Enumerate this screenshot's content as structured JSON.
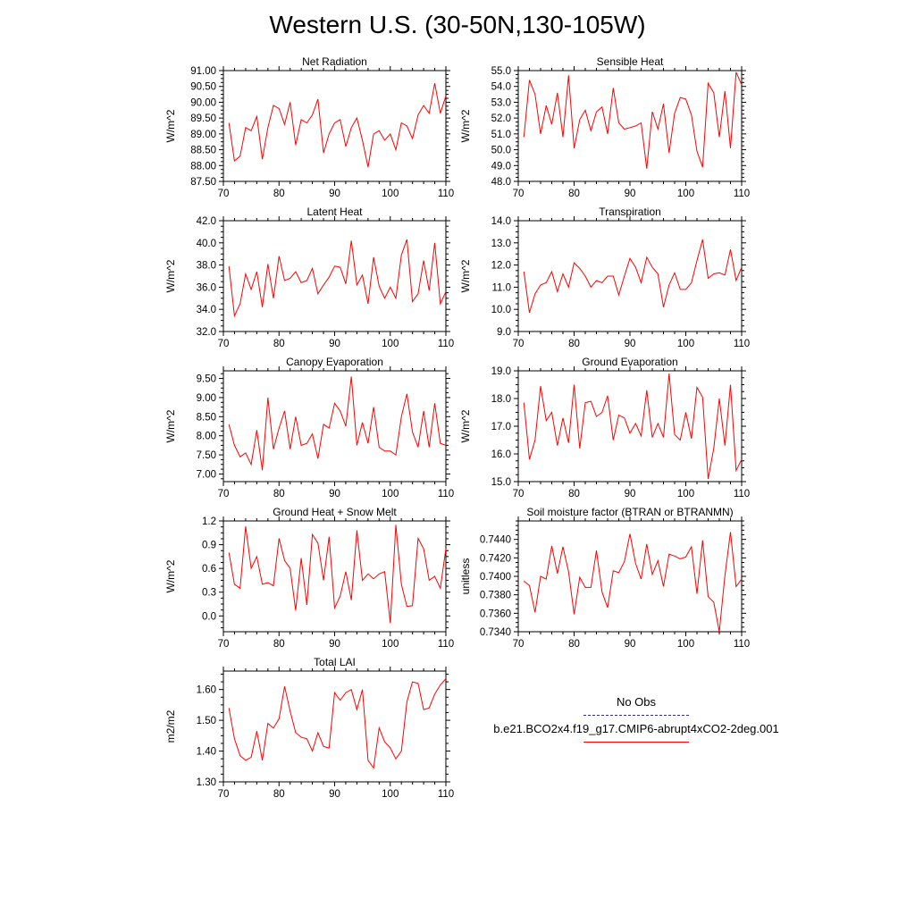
{
  "figure_title": "Western U.S. (30-50N,130-105W)",
  "legend": {
    "obs_label": "No Obs",
    "obs_color": "#2b2b9a",
    "model_label": "b.e21.BCO2x4.f19_g17.CMIP6-abrupt4xCO2-2deg.001",
    "model_color": "#ff0000"
  },
  "chart_data": [
    {
      "type": "line",
      "title": "Net Radiation",
      "ylabel": "W/m^2",
      "xlim": [
        70,
        110
      ],
      "ylim": [
        87.5,
        91.0
      ],
      "xticks": [
        70,
        80,
        90,
        100,
        110
      ],
      "yticks": [
        87.5,
        88.0,
        88.5,
        89.0,
        89.5,
        90.0,
        90.5,
        91.0
      ],
      "ytick_labels": [
        "87.50",
        "88.00",
        "88.50",
        "89.00",
        "89.50",
        "90.00",
        "90.50",
        "91.00"
      ],
      "series": [
        {
          "color": "#ff0000",
          "x": [
            71,
            72,
            73,
            74,
            75,
            76,
            77,
            78,
            79,
            80,
            81,
            82,
            83,
            84,
            85,
            86,
            87,
            88,
            89,
            90,
            91,
            92,
            93,
            94,
            95,
            96,
            97,
            98,
            99,
            100,
            101,
            102,
            103,
            104,
            105,
            106,
            107,
            108,
            109,
            110
          ],
          "values": [
            89.35,
            88.15,
            88.3,
            89.2,
            89.1,
            89.55,
            88.2,
            89.2,
            89.9,
            89.8,
            89.3,
            90.0,
            88.65,
            89.45,
            89.35,
            89.6,
            90.1,
            88.4,
            89.0,
            89.35,
            89.45,
            88.6,
            89.2,
            89.5,
            88.8,
            87.95,
            89.0,
            89.1,
            88.8,
            89.0,
            88.5,
            89.35,
            89.25,
            88.85,
            89.6,
            89.9,
            89.65,
            90.6,
            89.65,
            90.2
          ]
        }
      ]
    },
    {
      "type": "line",
      "title": "Sensible Heat",
      "ylabel": "W/m^2",
      "xlim": [
        70,
        110
      ],
      "ylim": [
        48.0,
        55.0
      ],
      "xticks": [
        70,
        80,
        90,
        100,
        110
      ],
      "yticks": [
        48,
        49,
        50,
        51,
        52,
        53,
        54,
        55
      ],
      "ytick_labels": [
        "48.0",
        "49.0",
        "50.0",
        "51.0",
        "52.0",
        "53.0",
        "54.0",
        "55.0"
      ],
      "series": [
        {
          "color": "#ff0000",
          "x": [
            71,
            72,
            73,
            74,
            75,
            76,
            77,
            78,
            79,
            80,
            81,
            82,
            83,
            84,
            85,
            86,
            87,
            88,
            89,
            90,
            91,
            92,
            93,
            94,
            95,
            96,
            97,
            98,
            99,
            100,
            101,
            102,
            103,
            104,
            105,
            106,
            107,
            108,
            109,
            110
          ],
          "values": [
            50.8,
            54.4,
            53.5,
            51.0,
            52.8,
            51.6,
            53.6,
            50.8,
            54.7,
            50.1,
            51.9,
            52.5,
            51.2,
            52.4,
            52.7,
            51.0,
            53.9,
            51.7,
            51.3,
            51.4,
            51.5,
            51.7,
            48.8,
            52.4,
            51.3,
            52.9,
            49.8,
            52.3,
            53.3,
            53.2,
            52.2,
            49.9,
            48.9,
            54.2,
            53.6,
            50.8,
            53.7,
            50.1,
            54.9,
            54.1
          ]
        }
      ]
    },
    {
      "type": "line",
      "title": "Latent Heat",
      "ylabel": "W/m^2",
      "xlim": [
        70,
        110
      ],
      "ylim": [
        32.0,
        42.0
      ],
      "xticks": [
        70,
        80,
        90,
        100,
        110
      ],
      "yticks": [
        32,
        34,
        36,
        38,
        40,
        42
      ],
      "ytick_labels": [
        "32.0",
        "34.0",
        "36.0",
        "38.0",
        "40.0",
        "42.0"
      ],
      "series": [
        {
          "color": "#ff0000",
          "x": [
            71,
            72,
            73,
            74,
            75,
            76,
            77,
            78,
            79,
            80,
            81,
            82,
            83,
            84,
            85,
            86,
            87,
            88,
            89,
            90,
            91,
            92,
            93,
            94,
            95,
            96,
            97,
            98,
            99,
            100,
            101,
            102,
            103,
            104,
            105,
            106,
            107,
            108,
            109,
            110
          ],
          "values": [
            37.9,
            33.4,
            34.5,
            37.2,
            35.8,
            37.4,
            34.2,
            38.1,
            35.0,
            38.8,
            36.6,
            36.8,
            37.4,
            36.4,
            36.6,
            37.7,
            35.4,
            36.2,
            36.9,
            37.9,
            37.8,
            36.3,
            40.2,
            36.2,
            37.1,
            34.5,
            38.7,
            36.1,
            35.0,
            36.0,
            35.0,
            38.9,
            40.3,
            34.7,
            35.4,
            38.4,
            35.7,
            40.0,
            34.5,
            35.6
          ]
        }
      ]
    },
    {
      "type": "line",
      "title": "Transpiration",
      "ylabel": "W/m^2",
      "xlim": [
        70,
        110
      ],
      "ylim": [
        9.0,
        14.0
      ],
      "xticks": [
        70,
        80,
        90,
        100,
        110
      ],
      "yticks": [
        9,
        10,
        11,
        12,
        13,
        14
      ],
      "ytick_labels": [
        "9.0",
        "10.0",
        "11.0",
        "12.0",
        "13.0",
        "14.0"
      ],
      "series": [
        {
          "color": "#ff0000",
          "x": [
            71,
            72,
            73,
            74,
            75,
            76,
            77,
            78,
            79,
            80,
            81,
            82,
            83,
            84,
            85,
            86,
            87,
            88,
            89,
            90,
            91,
            92,
            93,
            94,
            95,
            96,
            97,
            98,
            99,
            100,
            101,
            102,
            103,
            104,
            105,
            106,
            107,
            108,
            109,
            110
          ],
          "values": [
            11.7,
            9.85,
            10.7,
            11.1,
            11.2,
            11.7,
            10.8,
            11.6,
            11.0,
            12.1,
            11.85,
            11.5,
            11.0,
            11.3,
            11.2,
            11.5,
            11.5,
            10.65,
            11.5,
            12.3,
            11.9,
            11.2,
            12.35,
            11.9,
            11.6,
            10.1,
            11.1,
            11.65,
            10.9,
            10.9,
            11.2,
            12.2,
            13.15,
            11.4,
            11.6,
            11.65,
            11.55,
            12.7,
            11.3,
            11.9
          ]
        }
      ]
    },
    {
      "type": "line",
      "title": "Canopy Evaporation",
      "ylabel": "W/m^2",
      "xlim": [
        70,
        110
      ],
      "ylim": [
        6.8,
        9.7
      ],
      "xticks": [
        70,
        80,
        90,
        100,
        110
      ],
      "yticks": [
        7.0,
        7.5,
        8.0,
        8.5,
        9.0,
        9.5
      ],
      "ytick_labels": [
        "7.00",
        "7.50",
        "8.00",
        "8.50",
        "9.00",
        "9.50"
      ],
      "series": [
        {
          "color": "#ff0000",
          "x": [
            71,
            72,
            73,
            74,
            75,
            76,
            77,
            78,
            79,
            80,
            81,
            82,
            83,
            84,
            85,
            86,
            87,
            88,
            89,
            90,
            91,
            92,
            93,
            94,
            95,
            96,
            97,
            98,
            99,
            100,
            101,
            102,
            103,
            104,
            105,
            106,
            107,
            108,
            109,
            110
          ],
          "values": [
            8.3,
            7.75,
            7.45,
            7.55,
            7.25,
            8.15,
            7.1,
            9.0,
            7.65,
            8.2,
            8.65,
            7.65,
            8.5,
            7.75,
            7.8,
            8.05,
            7.4,
            8.3,
            8.2,
            8.85,
            8.65,
            8.25,
            9.55,
            7.75,
            8.35,
            7.8,
            8.75,
            7.7,
            7.6,
            7.6,
            7.5,
            8.5,
            9.1,
            8.1,
            7.7,
            8.65,
            7.7,
            8.85,
            7.8,
            7.75
          ]
        }
      ]
    },
    {
      "type": "line",
      "title": "Ground Evaporation",
      "ylabel": "W/m^2",
      "xlim": [
        70,
        110
      ],
      "ylim": [
        15.0,
        19.0
      ],
      "xticks": [
        70,
        80,
        90,
        100,
        110
      ],
      "yticks": [
        15,
        16,
        17,
        18,
        19
      ],
      "ytick_labels": [
        "15.0",
        "16.0",
        "17.0",
        "18.0",
        "19.0"
      ],
      "series": [
        {
          "color": "#ff0000",
          "x": [
            71,
            72,
            73,
            74,
            75,
            76,
            77,
            78,
            79,
            80,
            81,
            82,
            83,
            84,
            85,
            86,
            87,
            88,
            89,
            90,
            91,
            92,
            93,
            94,
            95,
            96,
            97,
            98,
            99,
            100,
            101,
            102,
            103,
            104,
            105,
            106,
            107,
            108,
            109,
            110
          ],
          "values": [
            17.85,
            15.8,
            16.5,
            18.45,
            17.2,
            17.5,
            16.3,
            17.3,
            16.4,
            18.5,
            16.2,
            17.85,
            17.9,
            17.35,
            17.5,
            18.1,
            16.5,
            17.4,
            17.3,
            16.75,
            17.1,
            16.65,
            18.3,
            16.6,
            17.1,
            16.6,
            18.9,
            16.7,
            16.5,
            17.5,
            16.55,
            18.4,
            18.05,
            15.1,
            16.2,
            18.0,
            16.3,
            18.5,
            15.4,
            15.8
          ]
        }
      ]
    },
    {
      "type": "line",
      "title": "Ground Heat + Snow Melt",
      "ylabel": "W/m^2",
      "xlim": [
        70,
        110
      ],
      "ylim": [
        -0.2,
        1.2
      ],
      "xticks": [
        70,
        80,
        90,
        100,
        110
      ],
      "yticks": [
        0.0,
        0.3,
        0.6,
        0.9,
        1.2
      ],
      "ytick_labels": [
        "0.0",
        "0.3",
        "0.6",
        "0.9",
        "1.2"
      ],
      "series": [
        {
          "color": "#ff0000",
          "x": [
            71,
            72,
            73,
            74,
            75,
            76,
            77,
            78,
            79,
            80,
            81,
            82,
            83,
            84,
            85,
            86,
            87,
            88,
            89,
            90,
            91,
            92,
            93,
            94,
            95,
            96,
            97,
            98,
            99,
            100,
            101,
            102,
            103,
            104,
            105,
            106,
            107,
            108,
            109,
            110
          ],
          "values": [
            0.8,
            0.4,
            0.35,
            1.13,
            0.6,
            0.75,
            0.4,
            0.42,
            0.38,
            0.98,
            0.7,
            0.6,
            0.07,
            0.73,
            0.14,
            1.03,
            0.92,
            0.45,
            1.0,
            0.1,
            0.25,
            0.56,
            0.2,
            1.08,
            0.45,
            0.53,
            0.47,
            0.53,
            0.56,
            -0.09,
            1.15,
            0.4,
            0.12,
            0.13,
            0.98,
            0.85,
            0.45,
            0.5,
            0.35,
            0.85
          ]
        }
      ]
    },
    {
      "type": "line",
      "title": "Soil moisture factor (BTRAN or BTRANMN)",
      "ylabel": "unitless",
      "xlim": [
        70,
        110
      ],
      "ylim": [
        0.734,
        0.746
      ],
      "xticks": [
        70,
        80,
        90,
        100,
        110
      ],
      "yticks": [
        0.734,
        0.736,
        0.738,
        0.74,
        0.742,
        0.744
      ],
      "ytick_labels": [
        "0.7340",
        "0.7360",
        "0.7380",
        "0.7400",
        "0.7420",
        "0.7440"
      ],
      "series": [
        {
          "color": "#ff0000",
          "x": [
            71,
            72,
            73,
            74,
            75,
            76,
            77,
            78,
            79,
            80,
            81,
            82,
            83,
            84,
            85,
            86,
            87,
            88,
            89,
            90,
            91,
            92,
            93,
            94,
            95,
            96,
            97,
            98,
            99,
            100,
            101,
            102,
            103,
            104,
            105,
            106,
            107,
            108,
            109,
            110
          ],
          "values": [
            0.7395,
            0.739,
            0.7361,
            0.74,
            0.7397,
            0.7433,
            0.7403,
            0.7432,
            0.7405,
            0.7359,
            0.7399,
            0.7388,
            0.7388,
            0.7428,
            0.7383,
            0.7366,
            0.7406,
            0.7404,
            0.7416,
            0.7446,
            0.7414,
            0.7397,
            0.7435,
            0.7402,
            0.7417,
            0.7389,
            0.7424,
            0.7422,
            0.7419,
            0.7421,
            0.7432,
            0.7381,
            0.7439,
            0.7378,
            0.7372,
            0.734,
            0.7401,
            0.7448,
            0.7389,
            0.7397
          ]
        }
      ]
    },
    {
      "type": "line",
      "title": "Total LAI",
      "ylabel": "m2/m2",
      "xlim": [
        70,
        110
      ],
      "ylim": [
        1.3,
        1.66
      ],
      "xticks": [
        70,
        80,
        90,
        100,
        110
      ],
      "yticks": [
        1.3,
        1.4,
        1.5,
        1.6
      ],
      "ytick_labels": [
        "1.30",
        "1.40",
        "1.50",
        "1.60"
      ],
      "series": [
        {
          "color": "#ff0000",
          "x": [
            71,
            72,
            73,
            74,
            75,
            76,
            77,
            78,
            79,
            80,
            81,
            82,
            83,
            84,
            85,
            86,
            87,
            88,
            89,
            90,
            91,
            92,
            93,
            94,
            95,
            96,
            97,
            98,
            99,
            100,
            101,
            102,
            103,
            104,
            105,
            106,
            107,
            108,
            109,
            110
          ],
          "values": [
            1.54,
            1.44,
            1.385,
            1.37,
            1.38,
            1.465,
            1.37,
            1.49,
            1.475,
            1.505,
            1.61,
            1.53,
            1.46,
            1.445,
            1.44,
            1.4,
            1.46,
            1.415,
            1.41,
            1.59,
            1.565,
            1.59,
            1.6,
            1.535,
            1.6,
            1.37,
            1.345,
            1.475,
            1.43,
            1.41,
            1.375,
            1.4,
            1.56,
            1.625,
            1.62,
            1.535,
            1.54,
            1.585,
            1.615,
            1.635
          ]
        }
      ]
    }
  ]
}
